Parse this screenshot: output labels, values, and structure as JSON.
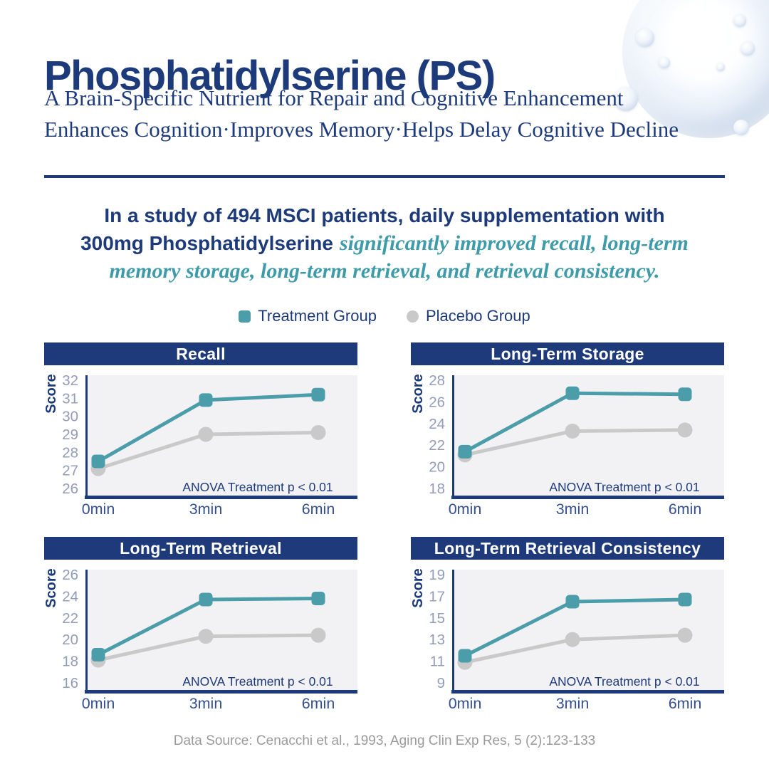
{
  "header": {
    "title": "Phosphatidylserine (PS)",
    "subtitle_line1": "A Brain-Specific Nutrient for Repair and Cognitive Enhancement",
    "subtitle_line2": "Enhances Cognition·Improves Memory·Helps Delay Cognitive Decline"
  },
  "study": {
    "line1": "In a study of 494 MSCI patients, daily supplementation with",
    "line2_navy": "300mg Phosphatidylserine",
    "line2_teal": "significantly improved recall, long-term",
    "line3_teal": "memory storage, long-term retrieval, and retrieval consistency."
  },
  "legend": {
    "treatment_label": "Treatment Group",
    "placebo_label": "Placebo Group"
  },
  "colors": {
    "navy": "#1d3a7b",
    "axis_label_navy": "#35508f",
    "tick_gray": "#949cbb",
    "teal": "#4b9da9",
    "teal_text": "#3e9ba9",
    "placebo_gray": "#c9c9c9",
    "plot_bg": "#f2f2f5",
    "footer_gray": "#9a9a9a"
  },
  "chart_data": [
    {
      "type": "line",
      "title": "Recall",
      "ylabel": "Score",
      "categories": [
        "0min",
        "3min",
        "6min"
      ],
      "ylim": [
        26,
        32
      ],
      "yticks": [
        26,
        27,
        28,
        29,
        30,
        31,
        32
      ],
      "annotation": "ANOVA Treatment p < 0.01",
      "grid": false,
      "series": [
        {
          "name": "Treatment Group",
          "marker": "square",
          "color": "#4b9da9",
          "values": [
            27.5,
            30.9,
            31.2
          ]
        },
        {
          "name": "Placebo Group",
          "marker": "circle",
          "color": "#c9c9c9",
          "values": [
            27.1,
            29.0,
            29.1
          ]
        }
      ]
    },
    {
      "type": "line",
      "title": "Long-Term Storage",
      "ylabel": "Score",
      "categories": [
        "0min",
        "3min",
        "6min"
      ],
      "ylim": [
        18,
        28
      ],
      "yticks": [
        18,
        20,
        22,
        24,
        26,
        28
      ],
      "annotation": "ANOVA Treatment p < 0.01",
      "grid": false,
      "series": [
        {
          "name": "Treatment Group",
          "marker": "square",
          "color": "#4b9da9",
          "values": [
            21.4,
            26.8,
            26.7
          ]
        },
        {
          "name": "Placebo Group",
          "marker": "circle",
          "color": "#c9c9c9",
          "values": [
            21.1,
            23.3,
            23.4
          ]
        }
      ]
    },
    {
      "type": "line",
      "title": "Long-Term Retrieval",
      "ylabel": "Score",
      "categories": [
        "0min",
        "3min",
        "6min"
      ],
      "ylim": [
        16,
        26
      ],
      "yticks": [
        16,
        18,
        20,
        22,
        24,
        26
      ],
      "annotation": "ANOVA Treatment p < 0.01",
      "grid": false,
      "series": [
        {
          "name": "Treatment Group",
          "marker": "square",
          "color": "#4b9da9",
          "values": [
            18.6,
            23.7,
            23.8
          ]
        },
        {
          "name": "Placebo Group",
          "marker": "circle",
          "color": "#c9c9c9",
          "values": [
            18.1,
            20.3,
            20.4
          ]
        }
      ]
    },
    {
      "type": "line",
      "title": "Long-Term Retrieval Consistency",
      "ylabel": "Score",
      "categories": [
        "0min",
        "3min",
        "6min"
      ],
      "ylim": [
        9,
        19
      ],
      "yticks": [
        9,
        11,
        13,
        15,
        17,
        19
      ],
      "annotation": "ANOVA Treatment p < 0.01",
      "grid": false,
      "series": [
        {
          "name": "Treatment Group",
          "marker": "square",
          "color": "#4b9da9",
          "values": [
            11.5,
            16.5,
            16.7
          ]
        },
        {
          "name": "Placebo Group",
          "marker": "circle",
          "color": "#c9c9c9",
          "values": [
            10.9,
            13.0,
            13.4
          ]
        }
      ]
    }
  ],
  "footer": {
    "source": "Data Source: Cenacchi et al., 1993, Aging Clin Exp Res, 5 (2):123-133"
  }
}
